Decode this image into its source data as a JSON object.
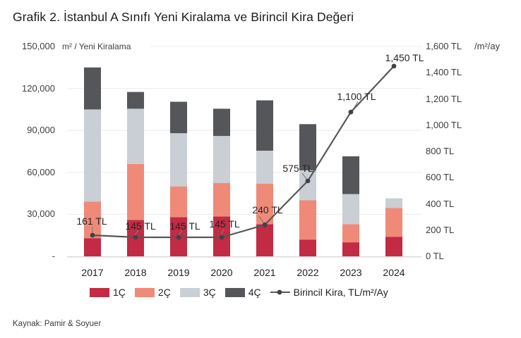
{
  "title": "Grafik 2. İstanbul A Sınıfı Yeni Kiralama ve Birincil Kira Değeri",
  "source": "Kaynak: Pamir & Soyuer",
  "colors": {
    "q1": "#c32a43",
    "q2": "#ef8a79",
    "q3": "#c9cfd4",
    "q4": "#54565a",
    "line": "#575757",
    "marker": "#424242",
    "leader": "#7d7d7d",
    "grid": "#ececec",
    "axis_line": "#d9d9d9"
  },
  "chart_data": {
    "type": "bar",
    "subtype": "stacked-with-line-overlay",
    "title": "Grafik 2. İstanbul A Sınıfı Yeni Kiralama ve Birincil Kira Değeri",
    "categories": [
      "2017",
      "2018",
      "2019",
      "2020",
      "2021",
      "2022",
      "2023",
      "2024"
    ],
    "series": [
      {
        "name": "1Ç",
        "color": "#c32a43",
        "values": [
          13000,
          26000,
          28000,
          28500,
          23000,
          12000,
          10000,
          14000
        ]
      },
      {
        "name": "2Ç",
        "color": "#ef8a79",
        "values": [
          26000,
          40000,
          22000,
          24000,
          29000,
          28000,
          13000,
          20500
        ]
      },
      {
        "name": "3Ç",
        "color": "#c9cfd4",
        "values": [
          66000,
          39500,
          38000,
          33500,
          23500,
          21500,
          21500,
          7000
        ]
      },
      {
        "name": "4Ç",
        "color": "#54565a",
        "values": [
          30000,
          12000,
          22500,
          19500,
          36000,
          33000,
          27000,
          0
        ]
      }
    ],
    "totals": [
      135000,
      117500,
      110500,
      105500,
      111500,
      94500,
      71500,
      41500
    ],
    "line_overlay": {
      "name": "Birincil Kira, TL/m²/Ay",
      "axis": "right",
      "color": "#575757",
      "values": [
        161,
        145,
        145,
        145,
        240,
        575,
        1100,
        1450
      ],
      "labels": [
        "161 TL",
        "145 TL",
        "145 TL",
        "145 TL",
        "240 TL",
        "575 TL",
        "1,100 TL",
        "1,450 TL"
      ]
    },
    "left_axis": {
      "label": "m² / Yeni Kiralama",
      "min": 0,
      "max": 150000,
      "tick_step": 30000,
      "ticks": [
        "150,000",
        "120,000",
        "90,000",
        "60,000",
        "30,000",
        "-"
      ]
    },
    "right_axis": {
      "label": "/m²/ay",
      "min": 0,
      "max": 1600,
      "tick_step": 200,
      "ticks": [
        "1,600 TL",
        "1,400 TL",
        "1,200 TL",
        "1,000 TL",
        "800 TL",
        "600 TL",
        "400 TL",
        "200 TL",
        "0 TL"
      ]
    },
    "grid": true,
    "legend_position": "bottom"
  }
}
